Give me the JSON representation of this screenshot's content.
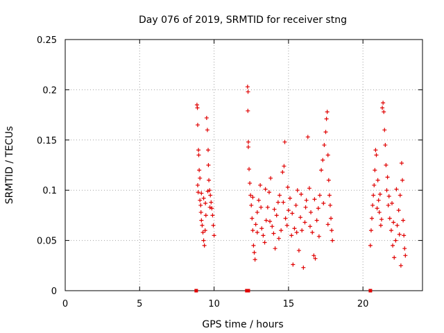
{
  "chart_data": {
    "type": "scatter",
    "title": "Day 076 of 2019, SRMTID for receiver stng",
    "xlabel": "GPS time / hours",
    "ylabel": "SRMTID / TECUs",
    "xlim": [
      0,
      24
    ],
    "ylim": [
      0,
      0.25
    ],
    "x_ticks": [
      0,
      5,
      10,
      15,
      20
    ],
    "y_ticks": [
      0,
      0.05,
      0.1,
      0.15,
      0.2,
      0.25
    ],
    "x_tick_labels": [
      "0",
      "5",
      "10",
      "15",
      "20"
    ],
    "y_tick_labels": [
      "0",
      "0.05",
      "0.1",
      "0.15",
      "0.2",
      "0.25"
    ],
    "grid": true,
    "marker": "+",
    "marker_color": "#e00000",
    "series": [
      {
        "name": "SRMTID",
        "points": [
          [
            8.85,
            0.185
          ],
          [
            8.88,
            0.182
          ],
          [
            8.9,
            0.165
          ],
          [
            8.95,
            0.14
          ],
          [
            8.97,
            0.135
          ],
          [
            9.0,
            0.12
          ],
          [
            8.9,
            0.105
          ],
          [
            8.93,
            0.098
          ],
          [
            9.05,
            0.09
          ],
          [
            9.1,
            0.085
          ],
          [
            9.12,
            0.078
          ],
          [
            9.15,
            0.07
          ],
          [
            9.2,
            0.065
          ],
          [
            9.25,
            0.058
          ],
          [
            9.3,
            0.05
          ],
          [
            9.35,
            0.045
          ],
          [
            9.4,
            0.06
          ],
          [
            9.45,
            0.075
          ],
          [
            9.5,
            0.172
          ],
          [
            9.55,
            0.16
          ],
          [
            9.6,
            0.14
          ],
          [
            9.62,
            0.125
          ],
          [
            9.65,
            0.11
          ],
          [
            9.7,
            0.1
          ],
          [
            9.75,
            0.095
          ],
          [
            9.8,
            0.088
          ],
          [
            9.85,
            0.082
          ],
          [
            9.9,
            0.075
          ],
          [
            9.95,
            0.065
          ],
          [
            10.0,
            0.055
          ],
          [
            9.05,
            0.112
          ],
          [
            9.15,
            0.097
          ],
          [
            9.3,
            0.092
          ],
          [
            9.42,
            0.087
          ],
          [
            9.58,
            0.099
          ],
          [
            9.72,
            0.083
          ],
          [
            12.25,
            0.203
          ],
          [
            12.28,
            0.198
          ],
          [
            12.27,
            0.179
          ],
          [
            12.3,
            0.148
          ],
          [
            12.3,
            0.143
          ],
          [
            12.35,
            0.121
          ],
          [
            12.4,
            0.107
          ],
          [
            12.45,
            0.095
          ],
          [
            12.5,
            0.085
          ],
          [
            12.55,
            0.072
          ],
          [
            12.6,
            0.06
          ],
          [
            12.65,
            0.045
          ],
          [
            12.7,
            0.038
          ],
          [
            12.75,
            0.031
          ],
          [
            12.8,
            0.066
          ],
          [
            12.9,
            0.078
          ],
          [
            13.0,
            0.09
          ],
          [
            13.1,
            0.105
          ],
          [
            13.2,
            0.062
          ],
          [
            13.3,
            0.055
          ],
          [
            13.4,
            0.048
          ],
          [
            13.5,
            0.07
          ],
          [
            13.6,
            0.083
          ],
          [
            13.7,
            0.098
          ],
          [
            13.8,
            0.112
          ],
          [
            13.9,
            0.064
          ],
          [
            14.0,
            0.057
          ],
          [
            14.1,
            0.042
          ],
          [
            14.2,
            0.075
          ],
          [
            14.3,
            0.088
          ],
          [
            14.4,
            0.095
          ],
          [
            14.5,
            0.06
          ],
          [
            14.6,
            0.118
          ],
          [
            14.7,
            0.124
          ],
          [
            14.75,
            0.148
          ],
          [
            14.8,
            0.072
          ],
          [
            14.9,
            0.065
          ],
          [
            15.0,
            0.08
          ],
          [
            15.1,
            0.092
          ],
          [
            15.2,
            0.055
          ],
          [
            15.3,
            0.026
          ],
          [
            15.4,
            0.062
          ],
          [
            15.5,
            0.085
          ],
          [
            15.6,
            0.1
          ],
          [
            15.7,
            0.04
          ],
          [
            15.8,
            0.073
          ],
          [
            15.9,
            0.06
          ],
          [
            16.0,
            0.023
          ],
          [
            16.1,
            0.068
          ],
          [
            16.2,
            0.09
          ],
          [
            16.3,
            0.153
          ],
          [
            16.4,
            0.102
          ],
          [
            16.5,
            0.078
          ],
          [
            16.6,
            0.058
          ],
          [
            16.7,
            0.035
          ],
          [
            16.8,
            0.032
          ],
          [
            16.9,
            0.07
          ],
          [
            17.0,
            0.082
          ],
          [
            17.1,
            0.095
          ],
          [
            17.2,
            0.12
          ],
          [
            17.3,
            0.13
          ],
          [
            17.4,
            0.145
          ],
          [
            17.5,
            0.158
          ],
          [
            17.55,
            0.171
          ],
          [
            17.6,
            0.178
          ],
          [
            17.65,
            0.135
          ],
          [
            17.7,
            0.11
          ],
          [
            17.75,
            0.095
          ],
          [
            17.8,
            0.085
          ],
          [
            17.85,
            0.072
          ],
          [
            17.9,
            0.06
          ],
          [
            17.95,
            0.05
          ],
          [
            12.6,
            0.093
          ],
          [
            12.9,
            0.058
          ],
          [
            13.15,
            0.083
          ],
          [
            13.45,
            0.101
          ],
          [
            13.75,
            0.069
          ],
          [
            14.05,
            0.081
          ],
          [
            14.35,
            0.052
          ],
          [
            14.65,
            0.088
          ],
          [
            14.95,
            0.103
          ],
          [
            15.25,
            0.077
          ],
          [
            15.55,
            0.058
          ],
          [
            15.85,
            0.096
          ],
          [
            16.15,
            0.083
          ],
          [
            16.45,
            0.064
          ],
          [
            16.75,
            0.091
          ],
          [
            17.05,
            0.054
          ],
          [
            17.35,
            0.087
          ],
          [
            17.65,
            0.066
          ],
          [
            20.5,
            0.045
          ],
          [
            20.55,
            0.06
          ],
          [
            20.6,
            0.072
          ],
          [
            20.65,
            0.085
          ],
          [
            20.7,
            0.095
          ],
          [
            20.75,
            0.105
          ],
          [
            20.8,
            0.12
          ],
          [
            20.85,
            0.14
          ],
          [
            20.9,
            0.135
          ],
          [
            21.0,
            0.11
          ],
          [
            21.05,
            0.09
          ],
          [
            21.1,
            0.078
          ],
          [
            21.2,
            0.065
          ],
          [
            21.3,
            0.182
          ],
          [
            21.35,
            0.187
          ],
          [
            21.4,
            0.178
          ],
          [
            21.45,
            0.16
          ],
          [
            21.5,
            0.145
          ],
          [
            21.55,
            0.125
          ],
          [
            21.6,
            0.1
          ],
          [
            21.7,
            0.085
          ],
          [
            21.8,
            0.072
          ],
          [
            21.9,
            0.06
          ],
          [
            22.0,
            0.045
          ],
          [
            22.1,
            0.033
          ],
          [
            22.2,
            0.05
          ],
          [
            22.3,
            0.065
          ],
          [
            22.4,
            0.08
          ],
          [
            22.5,
            0.095
          ],
          [
            22.6,
            0.127
          ],
          [
            22.65,
            0.11
          ],
          [
            22.7,
            0.07
          ],
          [
            22.75,
            0.055
          ],
          [
            22.8,
            0.042
          ],
          [
            22.85,
            0.035
          ],
          [
            20.95,
            0.082
          ],
          [
            21.15,
            0.096
          ],
          [
            21.25,
            0.071
          ],
          [
            21.65,
            0.113
          ],
          [
            21.75,
            0.094
          ],
          [
            21.95,
            0.087
          ],
          [
            22.05,
            0.068
          ],
          [
            22.25,
            0.101
          ],
          [
            22.45,
            0.056
          ],
          [
            22.55,
            0.025
          ]
        ]
      }
    ],
    "zero_markers": [
      8.8,
      12.2,
      12.3,
      20.5
    ]
  }
}
